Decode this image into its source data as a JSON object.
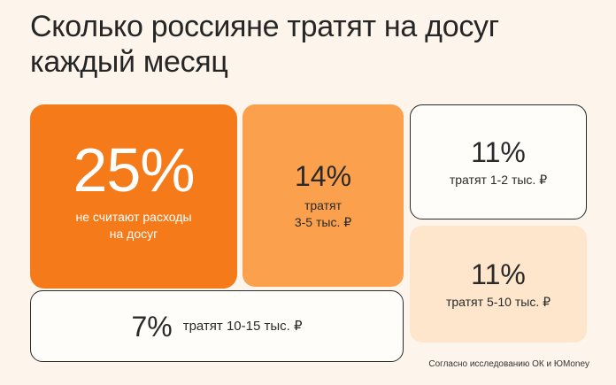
{
  "title": "Сколько россияне тратят на досуг каждый месяц",
  "chart_data": {
    "type": "treemap",
    "unit": "%",
    "items": [
      {
        "value": 25,
        "label": "не считают расходы на досуг",
        "color": "#f47a1a"
      },
      {
        "value": 14,
        "label": "тратят 3-5 тыс. ₽",
        "color": "#fba04d"
      },
      {
        "value": 11,
        "label": "тратят 1-2 тыс. ₽",
        "color": "#fffdfa"
      },
      {
        "value": 11,
        "label": "тратят 5-10 тыс. ₽",
        "color": "#fde6cc"
      },
      {
        "value": 7,
        "label": "тратят 10-15 тыс. ₽",
        "color": "#fffdfa"
      }
    ],
    "display": {
      "v25": "25%",
      "l25a": "не считают расходы",
      "l25b": "на досуг",
      "v14": "14%",
      "l14a": "тратят",
      "l14b": "3-5 тыс. ₽",
      "v11a": "11%",
      "l11a": "тратят 1-2 тыс. ₽",
      "v11b": "11%",
      "l11b": "тратят 5-10 тыс. ₽",
      "v7": "7%",
      "l7": "тратят 10-15 тыс. ₽"
    }
  },
  "footnote": "Согласно исследованию ОК и ЮMoney"
}
